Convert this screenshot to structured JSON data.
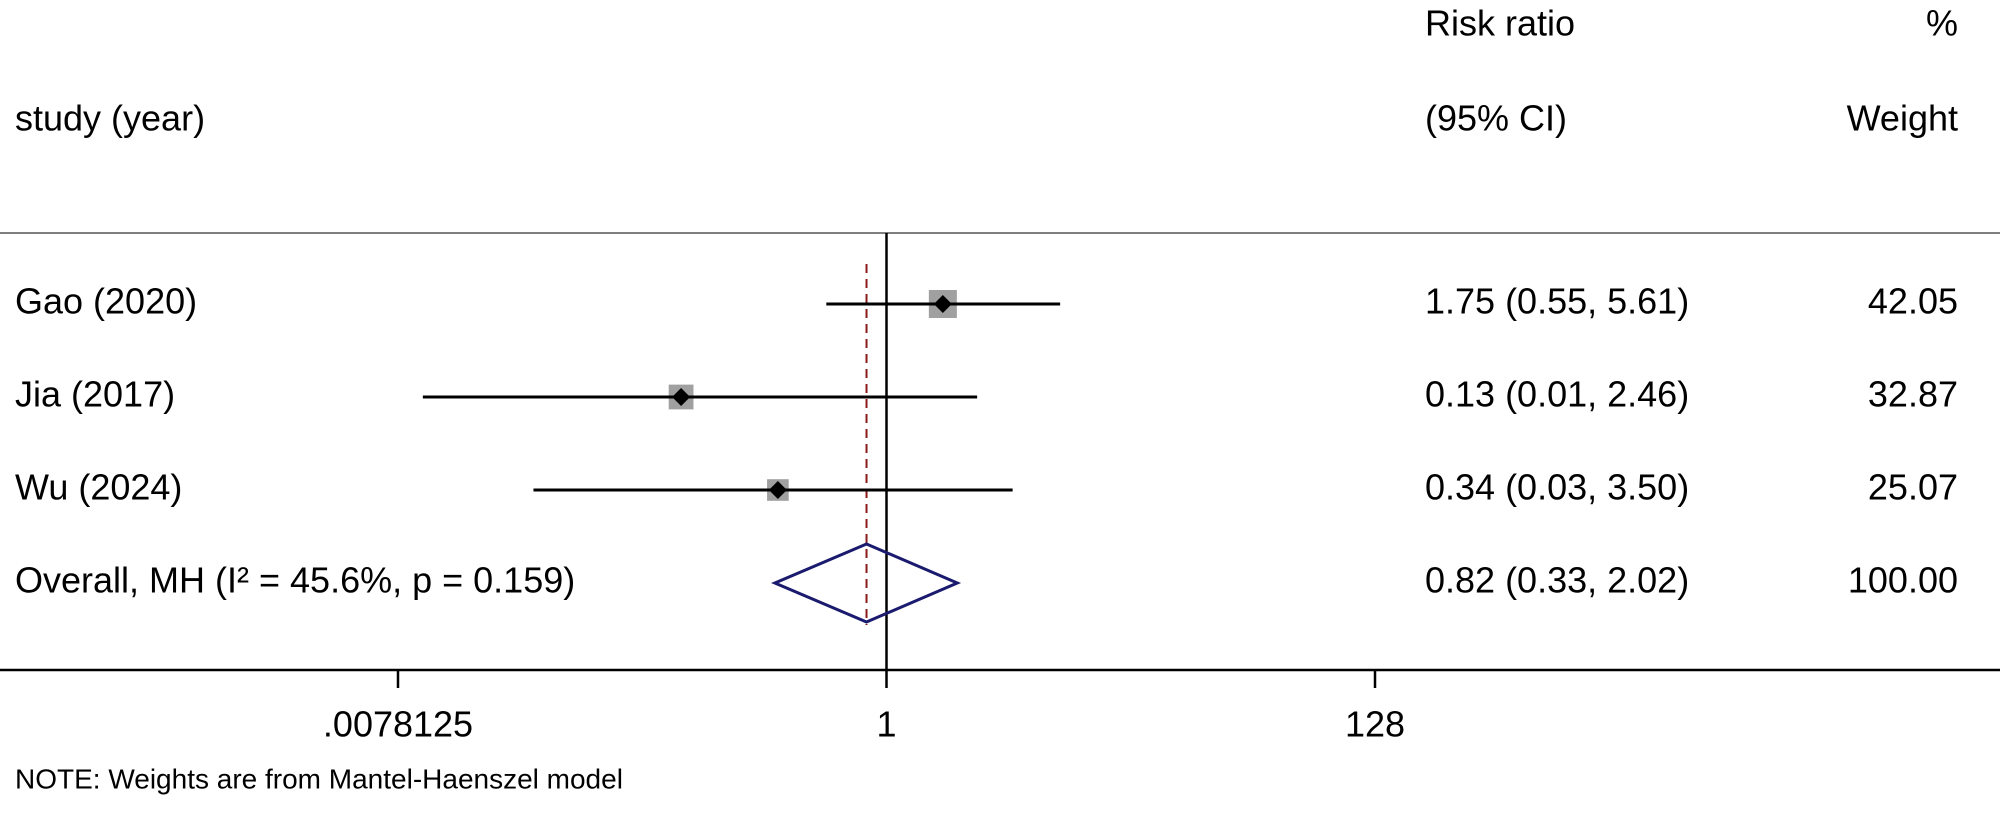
{
  "chart_data": {
    "type": "forest",
    "study_header": "study (year)",
    "effect_header": [
      "Risk ratio",
      "(95% CI)"
    ],
    "weight_header": [
      "%",
      "Weight"
    ],
    "categories": [
      "Gao (2020)",
      "Jia (2017)",
      "Wu (2024)",
      "Overall, MH (I² = 45.6%, p = 0.159)"
    ],
    "values": [
      1.75,
      0.13,
      0.34,
      0.82
    ],
    "ci_lower": [
      0.55,
      0.01,
      0.03,
      0.33
    ],
    "ci_upper": [
      5.61,
      2.46,
      3.5,
      2.02
    ],
    "value_labels": [
      "1.75 (0.55, 5.61)",
      "0.13 (0.01, 2.46)",
      "0.34 (0.03, 3.50)",
      "0.82 (0.33, 2.02)"
    ],
    "weights": [
      42.05,
      32.87,
      25.07,
      100
    ],
    "weight_labels": [
      "42.05",
      "32.87",
      "25.07",
      "100.00"
    ],
    "xscale": "log",
    "xlim": [
      0.0078125,
      128
    ],
    "xticks": [
      {
        "value": 0.0078125,
        "label": ".0078125"
      },
      1,
      128
    ],
    "null_value": 1,
    "box_color": "#a0a0a0",
    "point_color": "#000000",
    "ci_color": "#000000",
    "overall_color": "#1a1a6e",
    "overall_line_color": "#8b1a1a",
    "note": "NOTE: Weights are from Mantel-Haenszel model"
  }
}
